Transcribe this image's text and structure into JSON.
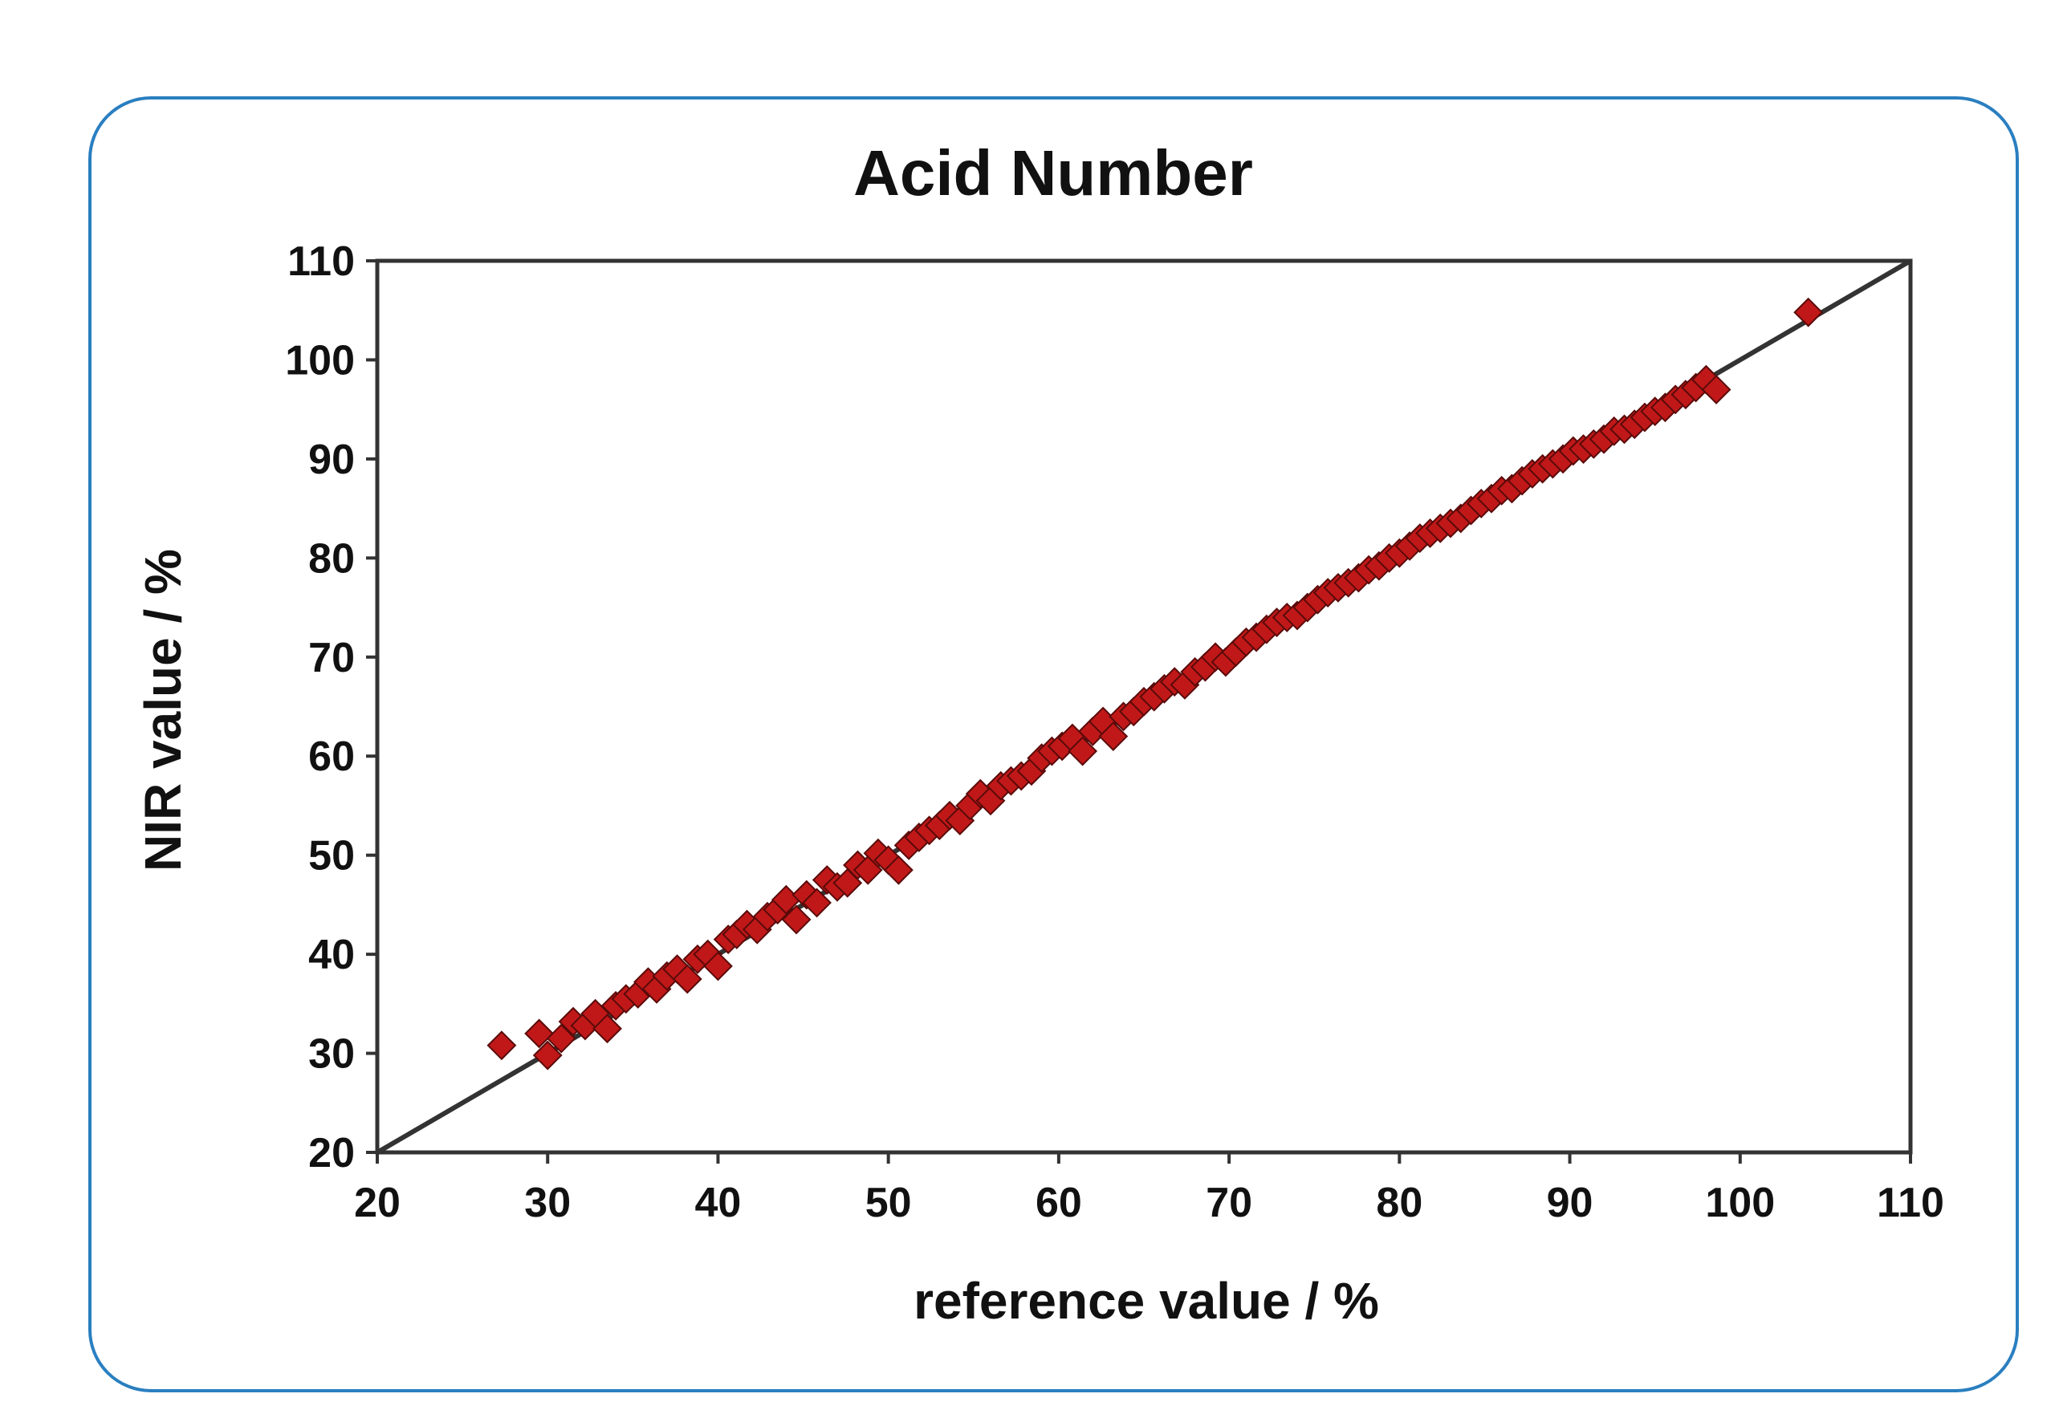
{
  "chart_data": {
    "type": "scatter",
    "title": "Acid Number",
    "xlabel": "reference value / %",
    "ylabel": "NIR value / %",
    "xlim": [
      20,
      110
    ],
    "ylim": [
      20,
      110
    ],
    "xticks": [
      20,
      30,
      40,
      50,
      60,
      70,
      80,
      90,
      100,
      110
    ],
    "yticks": [
      20,
      30,
      40,
      50,
      60,
      70,
      80,
      90,
      100,
      110
    ],
    "grid": false,
    "marker_color": "#c01818",
    "marker_edge_color": "#5a0a0a",
    "reference_line": {
      "from": [
        20,
        20
      ],
      "to": [
        110,
        110
      ],
      "color": "#333333"
    },
    "series": [
      {
        "marker": "diamond",
        "x": [
          27.3,
          29.5,
          30.0,
          30.8,
          31.5,
          32.2,
          32.8,
          33.5,
          34.0,
          34.6,
          35.3,
          35.9,
          36.4,
          37.0,
          37.6,
          38.2,
          38.8,
          39.4,
          40.0,
          40.6,
          41.1,
          41.7,
          42.3,
          42.9,
          43.5,
          44.0,
          44.6,
          45.2,
          45.8,
          46.4,
          47.0,
          47.6,
          48.2,
          48.8,
          49.4,
          50.0,
          50.6,
          51.2,
          51.8,
          52.4,
          53.0,
          53.6,
          54.2,
          54.8,
          55.4,
          56.0,
          56.6,
          57.2,
          57.8,
          58.4,
          59.0,
          59.6,
          60.2,
          60.8,
          61.4,
          62.0,
          62.6,
          63.2,
          63.8,
          64.4,
          65.0,
          65.6,
          66.2,
          66.8,
          67.4,
          68.0,
          68.6,
          69.2,
          69.8,
          70.4,
          71.0,
          71.6,
          72.2,
          72.8,
          73.4,
          74.0,
          74.6,
          75.2,
          75.8,
          76.4,
          77.0,
          77.6,
          78.2,
          78.8,
          79.4,
          80.0,
          80.6,
          81.2,
          81.8,
          82.4,
          83.0,
          83.6,
          84.2,
          84.8,
          85.4,
          86.0,
          86.6,
          87.2,
          87.8,
          88.4,
          89.0,
          89.6,
          90.2,
          90.8,
          91.4,
          92.0,
          92.6,
          93.2,
          93.8,
          94.4,
          95.0,
          95.6,
          96.2,
          96.8,
          97.4,
          98.0,
          98.6,
          104.0
        ],
        "y": [
          30.8,
          32.0,
          29.8,
          31.5,
          33.2,
          32.8,
          34.0,
          32.5,
          34.8,
          35.5,
          36.0,
          37.2,
          36.5,
          37.8,
          38.5,
          37.5,
          39.5,
          40.0,
          38.8,
          41.5,
          42.0,
          43.0,
          42.5,
          43.8,
          44.5,
          45.5,
          43.5,
          46.0,
          45.2,
          47.5,
          46.8,
          47.2,
          49.0,
          48.5,
          50.2,
          49.5,
          48.5,
          51.0,
          51.8,
          52.5,
          53.0,
          54.0,
          53.5,
          55.0,
          56.2,
          55.5,
          57.0,
          57.5,
          58.0,
          58.5,
          59.8,
          60.5,
          61.0,
          61.8,
          60.5,
          62.5,
          63.5,
          62.0,
          64.0,
          64.5,
          65.5,
          66.0,
          66.8,
          67.5,
          67.2,
          68.5,
          69.0,
          70.0,
          69.5,
          70.5,
          71.5,
          72.0,
          72.8,
          73.5,
          74.0,
          74.2,
          75.0,
          75.8,
          76.5,
          77.0,
          77.5,
          78.0,
          78.8,
          79.2,
          80.0,
          80.5,
          81.2,
          82.0,
          82.5,
          83.0,
          83.5,
          84.0,
          84.8,
          85.5,
          86.0,
          86.8,
          87.0,
          87.8,
          88.5,
          89.0,
          89.5,
          90.0,
          90.8,
          91.0,
          91.5,
          92.0,
          92.8,
          93.0,
          93.5,
          94.2,
          94.8,
          95.2,
          96.0,
          96.5,
          97.2,
          98.0,
          97.0,
          104.8
        ]
      }
    ]
  }
}
